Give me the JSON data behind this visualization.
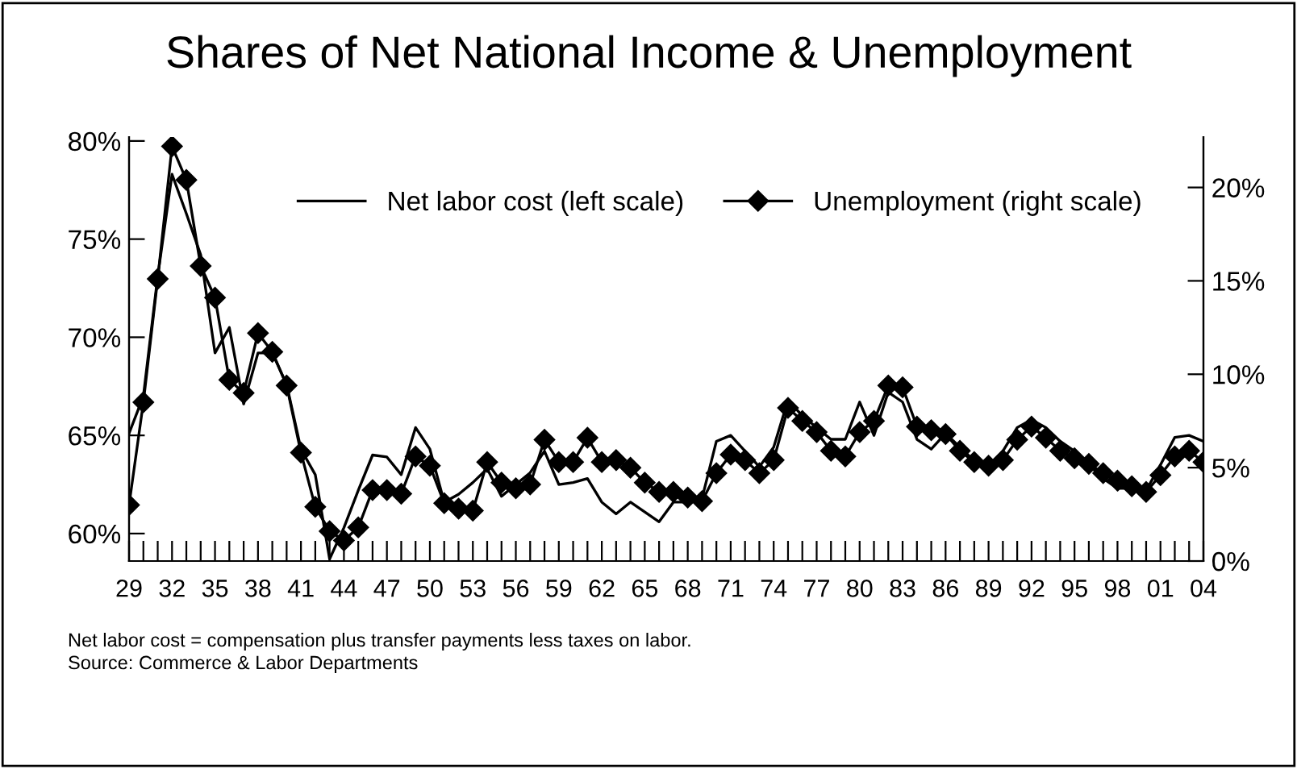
{
  "chart_data": {
    "type": "line",
    "title": "Shares of Net National Income & Unemployment",
    "x": [
      1929,
      1930,
      1931,
      1932,
      1933,
      1934,
      1935,
      1936,
      1937,
      1938,
      1939,
      1940,
      1941,
      1942,
      1943,
      1944,
      1945,
      1946,
      1947,
      1948,
      1949,
      1950,
      1951,
      1952,
      1953,
      1954,
      1955,
      1956,
      1957,
      1958,
      1959,
      1960,
      1961,
      1962,
      1963,
      1964,
      1965,
      1966,
      1967,
      1968,
      1969,
      1970,
      1971,
      1972,
      1973,
      1974,
      1975,
      1976,
      1977,
      1978,
      1979,
      1980,
      1981,
      1982,
      1983,
      1984,
      1985,
      1986,
      1987,
      1988,
      1989,
      1990,
      1991,
      1992,
      1993,
      1994,
      1995,
      1996,
      1997,
      1998,
      1999,
      2000,
      2001,
      2002,
      2003,
      2004
    ],
    "series": [
      {
        "name": "Net labor cost (left scale)",
        "color": "#000000",
        "marker": "none",
        "values": [
          65.1,
          67.0,
          73.1,
          78.3,
          76.3,
          74.2,
          69.2,
          70.5,
          66.6,
          69.2,
          69.2,
          67.6,
          64.3,
          63.0,
          58.7,
          60.3,
          62.2,
          64.0,
          63.9,
          63.0,
          65.4,
          64.3,
          61.6,
          62.0,
          62.6,
          63.3,
          61.9,
          62.5,
          63.1,
          64.2,
          62.5,
          62.6,
          62.8,
          61.6,
          61.0,
          61.6,
          61.1,
          60.6,
          61.6,
          61.6,
          61.8,
          64.7,
          65.0,
          64.2,
          63.4,
          64.4,
          66.8,
          66.0,
          65.4,
          64.8,
          64.8,
          66.7,
          65.0,
          67.2,
          66.7,
          64.8,
          64.3,
          65.1,
          64.4,
          63.7,
          63.4,
          64.2,
          65.4,
          65.8,
          65.4,
          64.7,
          64.2,
          63.5,
          62.8,
          62.3,
          62.3,
          62.2,
          63.5,
          64.9,
          65.0,
          64.7
        ]
      },
      {
        "name": "Unemployment (right scale)",
        "color": "#000000",
        "marker": "diamond",
        "axis": "y2",
        "values": [
          3.0,
          8.5,
          15.1,
          22.2,
          20.4,
          15.8,
          14.1,
          9.7,
          9.0,
          12.2,
          11.2,
          9.4,
          5.8,
          2.9,
          1.6,
          1.1,
          1.8,
          3.8,
          3.8,
          3.6,
          5.6,
          5.1,
          3.1,
          2.8,
          2.7,
          5.3,
          4.2,
          3.9,
          4.1,
          6.5,
          5.3,
          5.3,
          6.6,
          5.3,
          5.4,
          5.0,
          4.2,
          3.7,
          3.7,
          3.4,
          3.2,
          4.7,
          5.7,
          5.4,
          4.7,
          5.4,
          8.2,
          7.5,
          6.9,
          5.9,
          5.6,
          6.9,
          7.5,
          9.4,
          9.3,
          7.2,
          7.0,
          6.8,
          5.9,
          5.3,
          5.1,
          5.4,
          6.5,
          7.2,
          6.6,
          5.9,
          5.5,
          5.2,
          4.7,
          4.3,
          4.0,
          3.7,
          4.6,
          5.6,
          5.9,
          5.3
        ]
      }
    ],
    "xlim": [
      1929,
      2004
    ],
    "xticks": [
      {
        "value": 1929,
        "label": "29"
      },
      {
        "value": 1930,
        "label": null
      },
      {
        "value": 1931,
        "label": null
      },
      {
        "value": 1932,
        "label": "32"
      },
      {
        "value": 1933,
        "label": null
      },
      {
        "value": 1934,
        "label": null
      },
      {
        "value": 1935,
        "label": "35"
      },
      {
        "value": 1936,
        "label": null
      },
      {
        "value": 1937,
        "label": null
      },
      {
        "value": 1938,
        "label": "38"
      },
      {
        "value": 1939,
        "label": null
      },
      {
        "value": 1940,
        "label": null
      },
      {
        "value": 1941,
        "label": "41"
      },
      {
        "value": 1942,
        "label": null
      },
      {
        "value": 1943,
        "label": null
      },
      {
        "value": 1944,
        "label": "44"
      },
      {
        "value": 1945,
        "label": null
      },
      {
        "value": 1946,
        "label": null
      },
      {
        "value": 1947,
        "label": "47"
      },
      {
        "value": 1948,
        "label": null
      },
      {
        "value": 1949,
        "label": null
      },
      {
        "value": 1950,
        "label": "50"
      },
      {
        "value": 1951,
        "label": null
      },
      {
        "value": 1952,
        "label": null
      },
      {
        "value": 1953,
        "label": "53"
      },
      {
        "value": 1954,
        "label": null
      },
      {
        "value": 1955,
        "label": null
      },
      {
        "value": 1956,
        "label": "56"
      },
      {
        "value": 1957,
        "label": null
      },
      {
        "value": 1958,
        "label": null
      },
      {
        "value": 1959,
        "label": "59"
      },
      {
        "value": 1960,
        "label": null
      },
      {
        "value": 1961,
        "label": null
      },
      {
        "value": 1962,
        "label": "62"
      },
      {
        "value": 1963,
        "label": null
      },
      {
        "value": 1964,
        "label": null
      },
      {
        "value": 1965,
        "label": "65"
      },
      {
        "value": 1966,
        "label": null
      },
      {
        "value": 1967,
        "label": null
      },
      {
        "value": 1968,
        "label": "68"
      },
      {
        "value": 1969,
        "label": null
      },
      {
        "value": 1970,
        "label": null
      },
      {
        "value": 1971,
        "label": "71"
      },
      {
        "value": 1972,
        "label": null
      },
      {
        "value": 1973,
        "label": null
      },
      {
        "value": 1974,
        "label": "74"
      },
      {
        "value": 1975,
        "label": null
      },
      {
        "value": 1976,
        "label": null
      },
      {
        "value": 1977,
        "label": "77"
      },
      {
        "value": 1978,
        "label": null
      },
      {
        "value": 1979,
        "label": null
      },
      {
        "value": 1980,
        "label": "80"
      },
      {
        "value": 1981,
        "label": null
      },
      {
        "value": 1982,
        "label": null
      },
      {
        "value": 1983,
        "label": "83"
      },
      {
        "value": 1984,
        "label": null
      },
      {
        "value": 1985,
        "label": null
      },
      {
        "value": 1986,
        "label": "86"
      },
      {
        "value": 1987,
        "label": null
      },
      {
        "value": 1988,
        "label": null
      },
      {
        "value": 1989,
        "label": "89"
      },
      {
        "value": 1990,
        "label": null
      },
      {
        "value": 1991,
        "label": null
      },
      {
        "value": 1992,
        "label": "92"
      },
      {
        "value": 1993,
        "label": null
      },
      {
        "value": 1994,
        "label": null
      },
      {
        "value": 1995,
        "label": "95"
      },
      {
        "value": 1996,
        "label": null
      },
      {
        "value": 1997,
        "label": null
      },
      {
        "value": 1998,
        "label": "98"
      },
      {
        "value": 1999,
        "label": null
      },
      {
        "value": 2000,
        "label": null
      },
      {
        "value": 2001,
        "label": "01"
      },
      {
        "value": 2002,
        "label": null
      },
      {
        "value": 2003,
        "label": null
      },
      {
        "value": 2004,
        "label": "04"
      }
    ],
    "ylim": [
      58.6,
      80.2
    ],
    "yticks": [
      {
        "value": 60,
        "label": "60%"
      },
      {
        "value": 65,
        "label": "65%"
      },
      {
        "value": 70,
        "label": "70%"
      },
      {
        "value": 75,
        "label": "75%"
      },
      {
        "value": 80,
        "label": "80%"
      }
    ],
    "y2lim": [
      0,
      22.7
    ],
    "y2ticks": [
      {
        "value": 0,
        "label": "0%"
      },
      {
        "value": 5,
        "label": "5%"
      },
      {
        "value": 10,
        "label": "10%"
      },
      {
        "value": 15,
        "label": "15%"
      },
      {
        "value": 20,
        "label": "20%"
      }
    ],
    "grid": false,
    "legend": "top",
    "line_style": "solid",
    "annotations": [
      "Net labor cost = compensation plus transfer payments less taxes on labor.",
      "Source: Commerce & Labor Departments"
    ]
  }
}
